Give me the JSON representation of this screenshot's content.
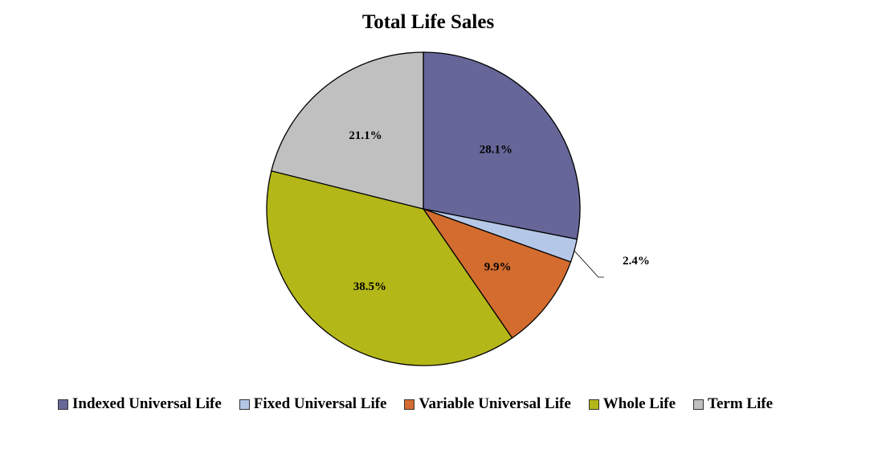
{
  "chart_data": {
    "type": "pie",
    "title": "Total Life Sales",
    "start_angle_deg": 0,
    "direction": "clockwise",
    "slices": [
      {
        "name": "Indexed Universal Life",
        "value": 28.1,
        "label": "28.1%",
        "color": "#666699"
      },
      {
        "name": "Fixed Universal Life",
        "value": 2.4,
        "label": "2.4%",
        "color": "#b4c7e6",
        "label_outside": true
      },
      {
        "name": "Variable Universal Life",
        "value": 9.9,
        "label": "9.9%",
        "color": "#d46c2f"
      },
      {
        "name": "Whole Life",
        "value": 38.5,
        "label": "38.5%",
        "color": "#b4b718"
      },
      {
        "name": "Term Life",
        "value": 21.1,
        "label": "21.1%",
        "color": "#c0c0c0"
      }
    ],
    "legend_position": "bottom"
  }
}
